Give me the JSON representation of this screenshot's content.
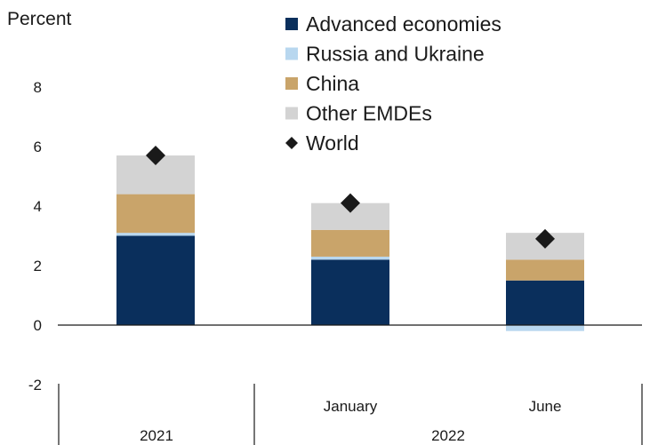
{
  "chart_data": {
    "type": "bar",
    "stacked": true,
    "ylabel": "Percent",
    "ylim": [
      -2,
      8
    ],
    "yticks": [
      8,
      6,
      4,
      2,
      0,
      -2
    ],
    "grid": false,
    "legend_position": "top-right",
    "categories": [
      "2021",
      "January",
      "June"
    ],
    "category_groups": [
      {
        "label": "2021",
        "members": [
          "2021"
        ]
      },
      {
        "label": "2022",
        "members": [
          "January",
          "June"
        ]
      }
    ],
    "series": [
      {
        "name": "Advanced economies",
        "color": "#0a2f5c",
        "values": [
          3.0,
          2.2,
          1.5
        ]
      },
      {
        "name": "Russia and Ukraine",
        "color": "#b8d7ef",
        "values": [
          0.1,
          0.1,
          -0.2
        ]
      },
      {
        "name": "China",
        "color": "#c9a46a",
        "values": [
          1.3,
          0.9,
          0.7
        ]
      },
      {
        "name": "Other EMDEs",
        "color": "#d3d3d3",
        "values": [
          1.3,
          0.9,
          0.9
        ]
      }
    ],
    "markers": {
      "name": "World",
      "shape": "diamond",
      "color": "#1a1a1a",
      "values": [
        5.7,
        4.1,
        2.9
      ]
    }
  }
}
